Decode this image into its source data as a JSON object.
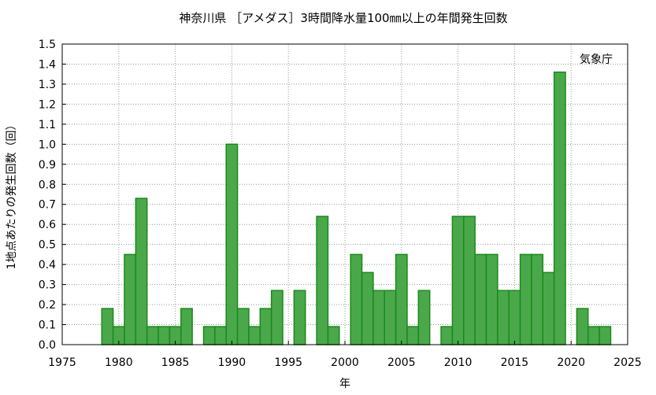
{
  "chart_data": {
    "type": "bar",
    "title": "神奈川県 ［アメダス］3時間降水量100㎜以上の年間発生回数",
    "xlabel": "年",
    "ylabel": "1地点あたりの発生回数（回）",
    "source_label": "気象庁",
    "xlim": [
      1975,
      2025
    ],
    "ylim": [
      0,
      1.5
    ],
    "x_ticks": [
      1975,
      1980,
      1985,
      1990,
      1995,
      2000,
      2005,
      2010,
      2015,
      2020,
      2025
    ],
    "y_ticks": [
      "0.0",
      "0.1",
      "0.2",
      "0.3",
      "0.4",
      "0.5",
      "0.6",
      "0.7",
      "0.8",
      "0.9",
      "1.0",
      "1.1",
      "1.2",
      "1.3",
      "1.4",
      "1.5"
    ],
    "grid": true,
    "bar_color": "#4aa84a",
    "bar_edge_color": "#1a8a1a",
    "categories": [
      1979,
      1980,
      1981,
      1982,
      1983,
      1984,
      1985,
      1986,
      1988,
      1989,
      1990,
      1991,
      1992,
      1993,
      1994,
      1996,
      1998,
      1999,
      2001,
      2002,
      2003,
      2004,
      2005,
      2006,
      2007,
      2009,
      2010,
      2011,
      2012,
      2013,
      2014,
      2015,
      2016,
      2017,
      2018,
      2019,
      2021,
      2022,
      2023
    ],
    "values": [
      0.18,
      0.09,
      0.45,
      0.73,
      0.09,
      0.09,
      0.09,
      0.18,
      0.09,
      0.09,
      1.0,
      0.18,
      0.09,
      0.18,
      0.27,
      0.27,
      0.64,
      0.09,
      0.45,
      0.36,
      0.27,
      0.27,
      0.45,
      0.09,
      0.27,
      0.09,
      0.64,
      0.64,
      0.45,
      0.45,
      0.27,
      0.27,
      0.45,
      0.45,
      0.36,
      1.36,
      0.18,
      0.09,
      0.09
    ]
  }
}
